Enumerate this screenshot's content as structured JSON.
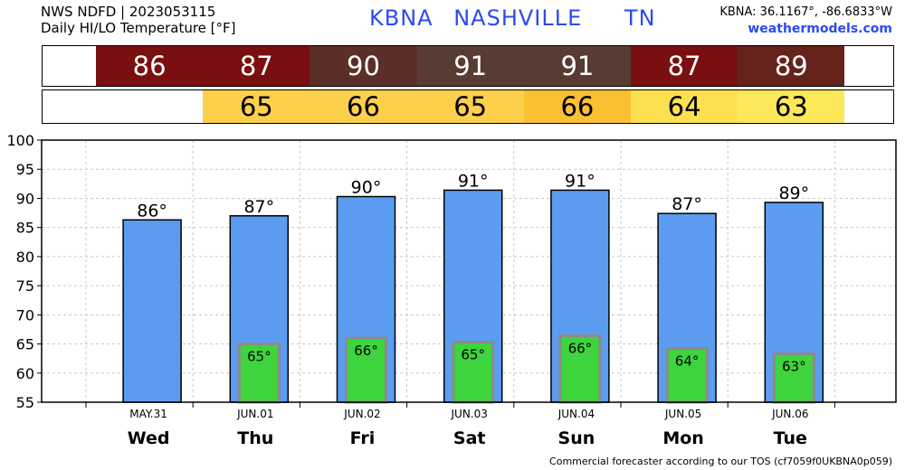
{
  "header": {
    "line1": "NWS NDFD | 2023053115",
    "line2": "Daily HI/LO Temperature [°F]",
    "station_id": "KBNA",
    "station_name": "NASHVILLE",
    "state": "TN",
    "coords": "KBNA: 36.1167°, -86.6833°W",
    "site": "weathermodels.com"
  },
  "footer": "Commercial forecaster according to our TOS (cf7059f0UKBNA0p059)",
  "colors": {
    "bar_high": "#5b9cf0",
    "bar_low": "#3dd43d",
    "bar_low_border": "#8a8a8a",
    "grid": "#c8c8c8",
    "title_blue": "#2b4bf0"
  },
  "strips": {
    "high": [
      {
        "label": "86",
        "color": "#7a0f0f"
      },
      {
        "label": "87",
        "color": "#7a0f0f"
      },
      {
        "label": "90",
        "color": "#5c2e28"
      },
      {
        "label": "91",
        "color": "#583b32"
      },
      {
        "label": "91",
        "color": "#583b32"
      },
      {
        "label": "87",
        "color": "#7a0f0f"
      },
      {
        "label": "89",
        "color": "#66231c"
      }
    ],
    "low": [
      {
        "label": "",
        "color": "#ffffff"
      },
      {
        "label": "65",
        "color": "#fcd04b"
      },
      {
        "label": "66",
        "color": "#fcd04b"
      },
      {
        "label": "65",
        "color": "#fcd04b"
      },
      {
        "label": "66",
        "color": "#fbc031"
      },
      {
        "label": "64",
        "color": "#fde052"
      },
      {
        "label": "63",
        "color": "#fde85a"
      }
    ]
  },
  "chart_data": {
    "type": "bar",
    "categories": [
      "Wed",
      "Thu",
      "Fri",
      "Sat",
      "Sun",
      "Mon",
      "Tue"
    ],
    "dates": [
      "MAY.31",
      "JUN.01",
      "JUN.02",
      "JUN.03",
      "JUN.04",
      "JUN.05",
      "JUN.06"
    ],
    "series": [
      {
        "values": [
          86.3,
          87.0,
          90.3,
          91.4,
          91.4,
          87.4,
          89.3
        ],
        "labels": [
          "86°",
          "87°",
          "90°",
          "91°",
          "91°",
          "87°",
          "89°"
        ]
      },
      {
        "values": [
          null,
          65.0,
          66.0,
          65.3,
          66.4,
          64.2,
          63.3
        ],
        "labels": [
          "",
          "65°",
          "66°",
          "65°",
          "66°",
          "64°",
          "63°"
        ]
      }
    ],
    "ylim": [
      55,
      100
    ],
    "yticks": [
      "55",
      "60",
      "65",
      "70",
      "75",
      "80",
      "85",
      "90",
      "95",
      "100"
    ],
    "grid": true
  }
}
